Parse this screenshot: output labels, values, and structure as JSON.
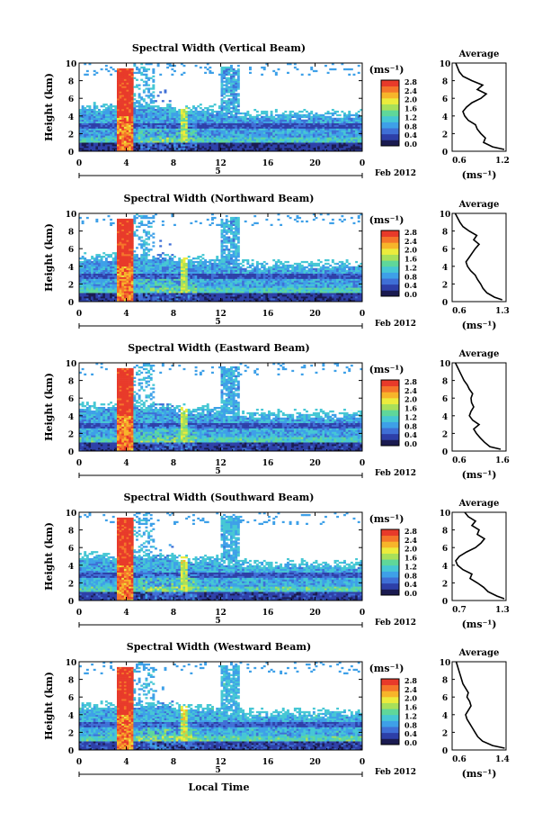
{
  "figure": {
    "xlabel": "Local Time",
    "date_label": "Feb 2012",
    "day_label": "5",
    "x_ticks": [
      "0",
      "4",
      "8",
      "12",
      "16",
      "20",
      "0"
    ],
    "y_ticks": [
      "0",
      "2",
      "4",
      "6",
      "8",
      "10"
    ],
    "ylabel": "Height (km)",
    "unit_label": "(ms⁻¹)",
    "avg_title": "Average",
    "avg_xlabel": "(ms⁻¹)",
    "colorbar_ticks": [
      "0.0",
      "0.4",
      "0.8",
      "1.2",
      "1.6",
      "2.0",
      "2.4",
      "2.8"
    ],
    "colormap": [
      "#1a1a50",
      "#2d3fa8",
      "#3f6fd6",
      "#3ea0e8",
      "#46c7d4",
      "#5fd79a",
      "#a8e05a",
      "#ecec3c",
      "#f7b52a",
      "#f5762a",
      "#e83a2a"
    ]
  },
  "chart_data": [
    {
      "type": "heatmap",
      "title": "Spectral Width (Vertical Beam)",
      "xlim": [
        0,
        24
      ],
      "ylim": [
        0,
        10
      ],
      "zlim": [
        0,
        2.8
      ],
      "avg_xlim": [
        0.6,
        1.2
      ],
      "avg_ticks": [
        "0.6",
        "1.2"
      ],
      "avg_profile": [
        [
          0.2,
          1.18
        ],
        [
          0.5,
          1.05
        ],
        [
          1.0,
          0.95
        ],
        [
          1.5,
          0.97
        ],
        [
          2.0,
          0.92
        ],
        [
          2.5,
          0.88
        ],
        [
          3.0,
          0.86
        ],
        [
          3.5,
          0.78
        ],
        [
          4.0,
          0.74
        ],
        [
          4.5,
          0.72
        ],
        [
          5.0,
          0.76
        ],
        [
          5.5,
          0.82
        ],
        [
          6.0,
          0.92
        ],
        [
          6.5,
          0.98
        ],
        [
          7.0,
          0.88
        ],
        [
          7.5,
          0.94
        ],
        [
          8.0,
          0.82
        ],
        [
          8.5,
          0.72
        ],
        [
          9.0,
          0.68
        ],
        [
          9.5,
          0.66
        ],
        [
          10.0,
          0.64
        ]
      ]
    },
    {
      "type": "heatmap",
      "title": "Spectral Width (Northward Beam)",
      "xlim": [
        0,
        24
      ],
      "ylim": [
        0,
        10
      ],
      "zlim": [
        0,
        2.8
      ],
      "avg_xlim": [
        0.6,
        1.3
      ],
      "avg_ticks": [
        "0.6",
        "1.3"
      ],
      "avg_profile": [
        [
          0.2,
          1.25
        ],
        [
          0.5,
          1.15
        ],
        [
          1.0,
          1.05
        ],
        [
          1.5,
          1.0
        ],
        [
          2.0,
          0.97
        ],
        [
          2.5,
          0.93
        ],
        [
          3.0,
          0.9
        ],
        [
          3.5,
          0.84
        ],
        [
          4.0,
          0.8
        ],
        [
          4.5,
          0.78
        ],
        [
          5.0,
          0.82
        ],
        [
          5.5,
          0.86
        ],
        [
          6.0,
          0.9
        ],
        [
          6.5,
          0.95
        ],
        [
          7.0,
          0.88
        ],
        [
          7.5,
          0.92
        ],
        [
          8.0,
          0.82
        ],
        [
          8.5,
          0.74
        ],
        [
          9.0,
          0.7
        ],
        [
          9.5,
          0.67
        ],
        [
          10.0,
          0.64
        ]
      ]
    },
    {
      "type": "heatmap",
      "title": "Spectral Width (Eastward Beam)",
      "xlim": [
        0,
        24
      ],
      "ylim": [
        0,
        10
      ],
      "zlim": [
        0,
        2.8
      ],
      "avg_xlim": [
        0.6,
        1.6
      ],
      "avg_ticks": [
        "0.6",
        "1.6"
      ],
      "avg_profile": [
        [
          0.2,
          1.5
        ],
        [
          0.5,
          1.3
        ],
        [
          1.0,
          1.2
        ],
        [
          1.5,
          1.12
        ],
        [
          2.0,
          1.05
        ],
        [
          2.5,
          1.0
        ],
        [
          3.0,
          1.1
        ],
        [
          3.5,
          0.98
        ],
        [
          4.0,
          0.92
        ],
        [
          4.5,
          0.95
        ],
        [
          5.0,
          1.0
        ],
        [
          5.5,
          0.96
        ],
        [
          6.0,
          0.95
        ],
        [
          6.5,
          0.98
        ],
        [
          7.0,
          0.92
        ],
        [
          7.5,
          0.88
        ],
        [
          8.0,
          0.82
        ],
        [
          8.5,
          0.78
        ],
        [
          9.0,
          0.74
        ],
        [
          9.5,
          0.7
        ],
        [
          10.0,
          0.66
        ]
      ]
    },
    {
      "type": "heatmap",
      "title": "Spectral Width (Southward Beam)",
      "xlim": [
        0,
        24
      ],
      "ylim": [
        0,
        10
      ],
      "zlim": [
        0,
        2.8
      ],
      "avg_xlim": [
        0.7,
        1.3
      ],
      "avg_ticks": [
        "0.7",
        "1.3"
      ],
      "avg_profile": [
        [
          0.2,
          1.28
        ],
        [
          0.5,
          1.2
        ],
        [
          1.0,
          1.1
        ],
        [
          1.5,
          1.05
        ],
        [
          2.0,
          0.98
        ],
        [
          2.5,
          0.9
        ],
        [
          3.0,
          0.92
        ],
        [
          3.5,
          0.82
        ],
        [
          4.0,
          0.76
        ],
        [
          4.5,
          0.74
        ],
        [
          5.0,
          0.78
        ],
        [
          5.5,
          0.86
        ],
        [
          6.0,
          0.96
        ],
        [
          6.5,
          1.02
        ],
        [
          7.0,
          1.06
        ],
        [
          7.5,
          0.98
        ],
        [
          8.0,
          1.0
        ],
        [
          8.5,
          0.92
        ],
        [
          9.0,
          0.96
        ],
        [
          9.5,
          0.88
        ],
        [
          10.0,
          0.84
        ]
      ]
    },
    {
      "type": "heatmap",
      "title": "Spectral Width (Westward Beam)",
      "xlim": [
        0,
        24
      ],
      "ylim": [
        0,
        10
      ],
      "zlim": [
        0,
        2.8
      ],
      "avg_xlim": [
        0.6,
        1.4
      ],
      "avg_ticks": [
        "0.6",
        "1.4"
      ],
      "avg_profile": [
        [
          0.2,
          1.38
        ],
        [
          0.5,
          1.2
        ],
        [
          1.0,
          1.05
        ],
        [
          1.5,
          0.98
        ],
        [
          2.0,
          0.94
        ],
        [
          2.5,
          0.9
        ],
        [
          3.0,
          0.86
        ],
        [
          3.5,
          0.82
        ],
        [
          4.0,
          0.8
        ],
        [
          4.5,
          0.84
        ],
        [
          5.0,
          0.88
        ],
        [
          5.5,
          0.86
        ],
        [
          6.0,
          0.82
        ],
        [
          6.5,
          0.84
        ],
        [
          7.0,
          0.8
        ],
        [
          7.5,
          0.76
        ],
        [
          8.0,
          0.74
        ],
        [
          8.5,
          0.72
        ],
        [
          9.0,
          0.7
        ],
        [
          9.5,
          0.68
        ],
        [
          10.0,
          0.66
        ]
      ]
    }
  ]
}
